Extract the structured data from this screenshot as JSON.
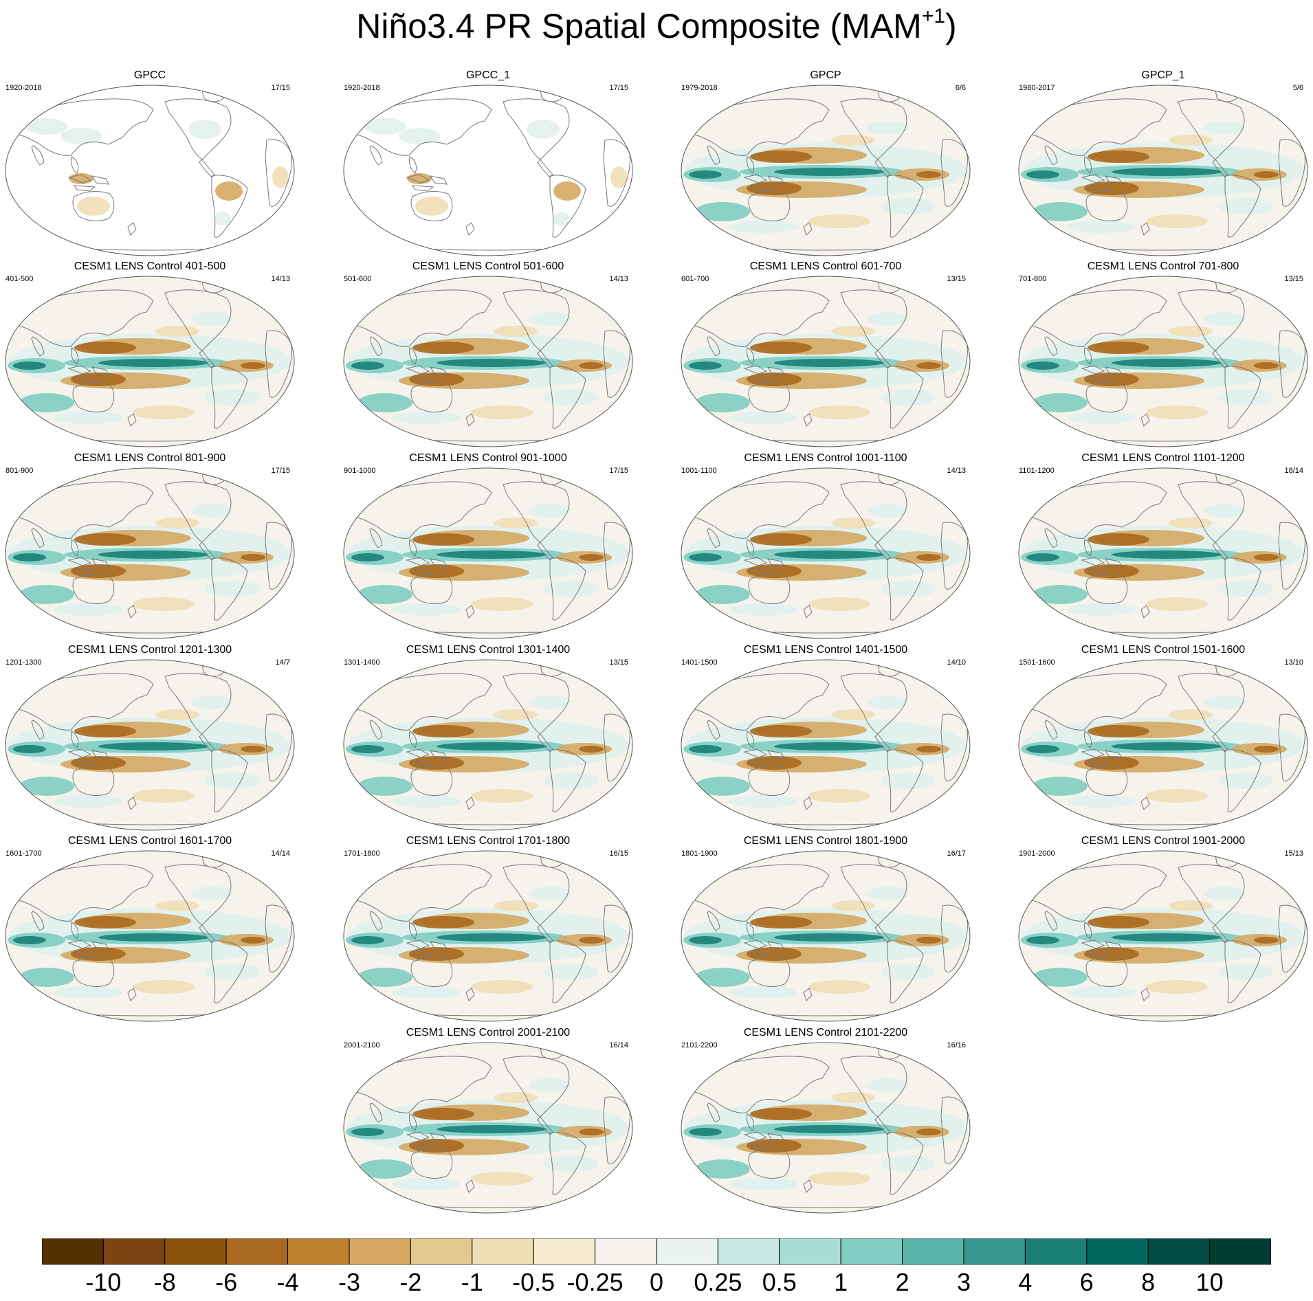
{
  "figure": {
    "title": "Niño3.4 PR Spatial Composite (MAM",
    "title_superscript": "+1",
    "title_close": ")"
  },
  "panels": [
    {
      "title": "GPCC",
      "period": "1920-2018",
      "count": "17/15",
      "coverage": "land"
    },
    {
      "title": "GPCC_1",
      "period": "1920-2018",
      "count": "17/15",
      "coverage": "land"
    },
    {
      "title": "GPCP",
      "period": "1979-2018",
      "count": "6/6",
      "coverage": "global"
    },
    {
      "title": "GPCP_1",
      "period": "1980-2017",
      "count": "5/6",
      "coverage": "global"
    },
    {
      "title": "CESM1 LENS Control 401-500",
      "period": "401-500",
      "count": "14/13",
      "coverage": "global"
    },
    {
      "title": "CESM1 LENS Control 501-600",
      "period": "501-600",
      "count": "14/13",
      "coverage": "global"
    },
    {
      "title": "CESM1 LENS Control 601-700",
      "period": "601-700",
      "count": "13/15",
      "coverage": "global"
    },
    {
      "title": "CESM1 LENS Control 701-800",
      "period": "701-800",
      "count": "13/15",
      "coverage": "global"
    },
    {
      "title": "CESM1 LENS Control 801-900",
      "period": "801-900",
      "count": "17/15",
      "coverage": "global"
    },
    {
      "title": "CESM1 LENS Control 901-1000",
      "period": "901-1000",
      "count": "17/15",
      "coverage": "global"
    },
    {
      "title": "CESM1 LENS Control 1001-1100",
      "period": "1001-1100",
      "count": "14/13",
      "coverage": "global"
    },
    {
      "title": "CESM1 LENS Control 1101-1200",
      "period": "1101-1200",
      "count": "18/14",
      "coverage": "global"
    },
    {
      "title": "CESM1 LENS Control 1201-1300",
      "period": "1201-1300",
      "count": "14/7",
      "coverage": "global"
    },
    {
      "title": "CESM1 LENS Control 1301-1400",
      "period": "1301-1400",
      "count": "13/15",
      "coverage": "global"
    },
    {
      "title": "CESM1 LENS Control 1401-1500",
      "period": "1401-1500",
      "count": "14/10",
      "coverage": "global"
    },
    {
      "title": "CESM1 LENS Control 1501-1600",
      "period": "1501-1600",
      "count": "13/10",
      "coverage": "global"
    },
    {
      "title": "CESM1 LENS Control 1601-1700",
      "period": "1601-1700",
      "count": "14/14",
      "coverage": "global"
    },
    {
      "title": "CESM1 LENS Control 1701-1800",
      "period": "1701-1800",
      "count": "16/15",
      "coverage": "global"
    },
    {
      "title": "CESM1 LENS Control 1801-1900",
      "period": "1801-1900",
      "count": "16/17",
      "coverage": "global"
    },
    {
      "title": "CESM1 LENS Control 1901-2000",
      "period": "1901-2000",
      "count": "15/13",
      "coverage": "global"
    },
    {
      "title": "CESM1 LENS Control 2001-2100",
      "period": "2001-2100",
      "count": "16/14",
      "coverage": "global"
    },
    {
      "title": "CESM1 LENS Control 2101-2200",
      "period": "2101-2200",
      "count": "16/16",
      "coverage": "global"
    }
  ],
  "colorbar": {
    "labels": [
      "-10",
      "-8",
      "-6",
      "-4",
      "-3",
      "-2",
      "-1",
      "-0.5",
      "-0.25",
      "0",
      "0.25",
      "0.5",
      "1",
      "2",
      "3",
      "4",
      "6",
      "8",
      "10"
    ],
    "colors": [
      "#543005",
      "#7a4510",
      "#8c510a",
      "#a8691e",
      "#bf812d",
      "#d5a862",
      "#e4c98e",
      "#f0dfb6",
      "#f6ebcf",
      "#f5f3ec",
      "#e8f2ef",
      "#c7eae5",
      "#a7ddd4",
      "#80cdc1",
      "#5ab4a9",
      "#35978f",
      "#1a7f77",
      "#01665e",
      "#014d45",
      "#003c30"
    ]
  },
  "map_colors": {
    "dry_strong": "#a8691e",
    "dry": "#d5a862",
    "dry_weak": "#f0dfb6",
    "neutral": "#f5f3ec",
    "wet_weak": "#e0f1ed",
    "wet": "#80cdc1",
    "wet_strong": "#1a7f77",
    "coastline": "#777777",
    "border": "#555555"
  }
}
